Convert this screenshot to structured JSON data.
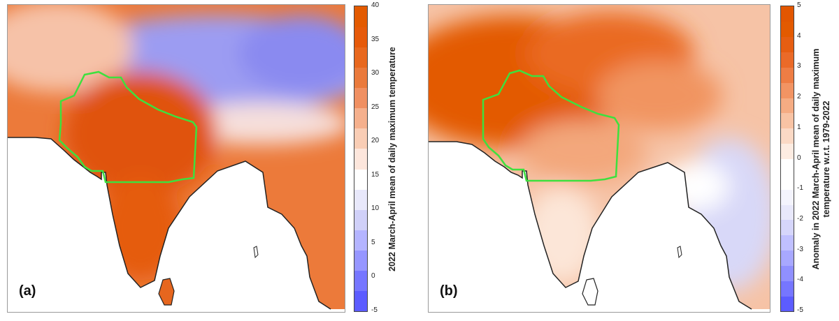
{
  "panel_a": {
    "label": "(a)",
    "colorbar": {
      "label": "2022 March-April mean of daily maximum temperature",
      "min": -5,
      "max": 40,
      "ticks": [
        "40",
        "35",
        "30",
        "25",
        "20",
        "15",
        "10",
        "5",
        "0",
        "-5"
      ],
      "colors": [
        "#5c5cff",
        "#7676ff",
        "#9696ff",
        "#b4b4ff",
        "#d0d0f8",
        "#e8e8fb",
        "#ffffff",
        "#fde6dc",
        "#f9cdb5",
        "#f5b08d",
        "#f09062",
        "#ea7a3c",
        "#e8681e",
        "#e65a0a",
        "#e35a00"
      ]
    }
  },
  "panel_b": {
    "label": "(b)",
    "colorbar": {
      "label_line1": "Anomaly in 2022 March-April mean of daily maximum",
      "label_line2": "temperature w.r.t. 1979-2022",
      "min": -5,
      "max": 5,
      "ticks": [
        "5",
        "4",
        "3",
        "2",
        "1",
        "0",
        "-1",
        "-2",
        "-3",
        "-4",
        "-5"
      ],
      "colors": [
        "#5c5cff",
        "#7676ff",
        "#9090ff",
        "#a8a8ff",
        "#c0c0ff",
        "#d6d6fb",
        "#e8e8fb",
        "#f4f4fd",
        "#ffffff",
        "#ffffff",
        "#fdece2",
        "#fbd9c5",
        "#f8c3a4",
        "#f5ac83",
        "#f29463",
        "#ee7d44",
        "#ea6a28",
        "#e65e12",
        "#e35a00",
        "#e25600"
      ]
    }
  },
  "colors": {
    "region_outline": "#3ee03e",
    "coastline": "#222222"
  }
}
